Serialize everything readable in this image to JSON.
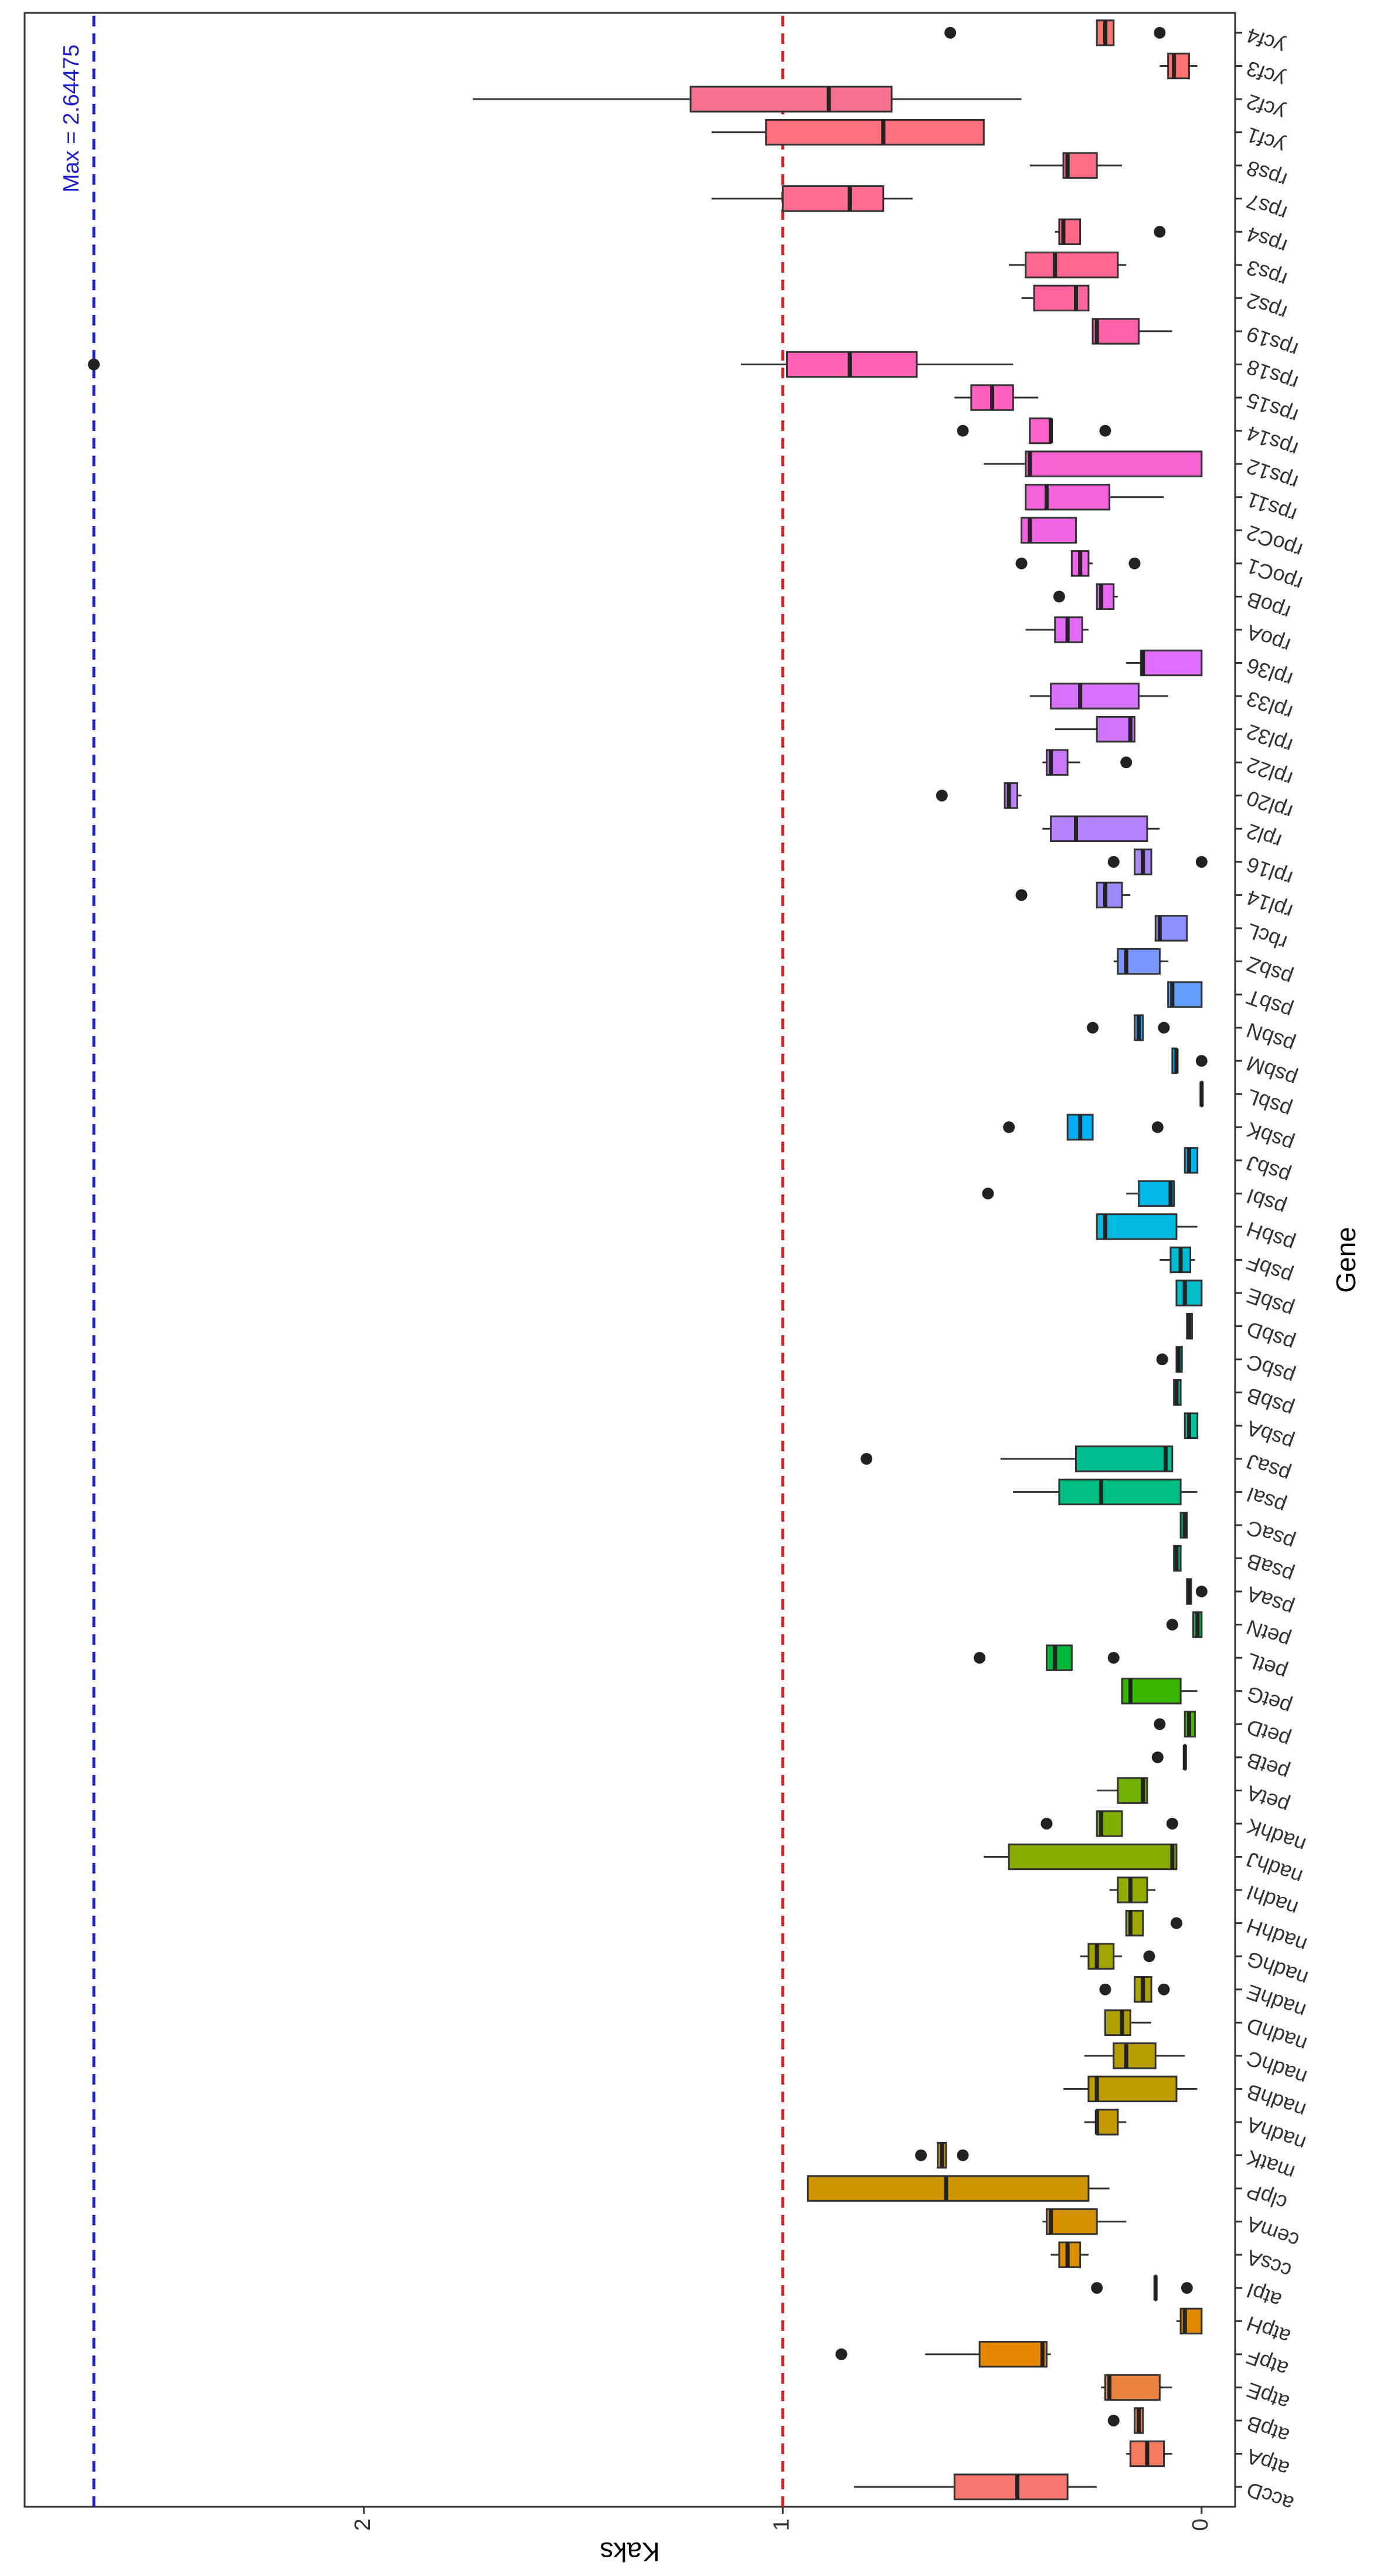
{
  "chart_data": {
    "type": "boxplot",
    "x_label": "Gene",
    "y_label": "Kaks",
    "categories": [
      "accD",
      "atpA",
      "atpB",
      "atpE",
      "atpF",
      "atpH",
      "atpI",
      "ccsA",
      "cemA",
      "clpP",
      "matK",
      "nadhA",
      "nadhB",
      "nadhC",
      "nadhD",
      "nadhE",
      "nadhG",
      "nadhH",
      "nadhI",
      "nadhJ",
      "nadhK",
      "petA",
      "petB",
      "petD",
      "petG",
      "petL",
      "petN",
      "psaA",
      "psaB",
      "psaC",
      "psaI",
      "psaJ",
      "psbA",
      "psbB",
      "psbC",
      "psbD",
      "psbE",
      "psbF",
      "psbH",
      "psbI",
      "psbJ",
      "psbK",
      "psbL",
      "psbM",
      "psbN",
      "psbT",
      "psbZ",
      "rbcL",
      "rpl14",
      "rpl16",
      "rpl2",
      "rpl20",
      "rpl22",
      "rpl32",
      "rpl33",
      "rpl36",
      "rpoA",
      "rpoB",
      "rpoC1",
      "rpoC2",
      "rps11",
      "rps12",
      "rps14",
      "rps15",
      "rps18",
      "rps19",
      "rps2",
      "rps3",
      "rps4",
      "rps7",
      "rps8",
      "ycf1",
      "ycf2",
      "ycf3",
      "ycf4"
    ],
    "boxes": [
      {
        "low": 0.25,
        "q1": 0.32,
        "median": 0.44,
        "q3": 0.59,
        "high": 0.83,
        "outliers": []
      },
      {
        "low": 0.07,
        "q1": 0.09,
        "median": 0.13,
        "q3": 0.17,
        "high": 0.18,
        "outliers": []
      },
      {
        "low": 0.14,
        "q1": 0.14,
        "median": 0.15,
        "q3": 0.16,
        "high": 0.16,
        "outliers": [
          0.21
        ]
      },
      {
        "low": 0.07,
        "q1": 0.1,
        "median": 0.22,
        "q3": 0.23,
        "high": 0.24,
        "outliers": []
      },
      {
        "low": 0.36,
        "q1": 0.37,
        "median": 0.38,
        "q3": 0.53,
        "high": 0.66,
        "outliers": [
          0.86
        ]
      },
      {
        "low": 0,
        "q1": 0,
        "median": 0.04,
        "q3": 0.05,
        "high": 0.06,
        "outliers": []
      },
      {
        "low": 0.11,
        "q1": 0.11,
        "median": 0.11,
        "q3": 0.11,
        "high": 0.11,
        "outliers": [
          0.25,
          0.035
        ]
      },
      {
        "low": 0.27,
        "q1": 0.29,
        "median": 0.32,
        "q3": 0.34,
        "high": 0.36,
        "outliers": []
      },
      {
        "low": 0.18,
        "q1": 0.25,
        "median": 0.36,
        "q3": 0.37,
        "high": 0.38,
        "outliers": []
      },
      {
        "low": 0.22,
        "q1": 0.27,
        "median": 0.61,
        "q3": 0.94,
        "high": 0.94,
        "outliers": []
      },
      {
        "low": 0.61,
        "q1": 0.61,
        "median": 0.62,
        "q3": 0.63,
        "high": 0.63,
        "outliers": [
          0.67,
          0.57
        ]
      },
      {
        "low": 0.18,
        "q1": 0.2,
        "median": 0.25,
        "q3": 0.25,
        "high": 0.28,
        "outliers": []
      },
      {
        "low": 0.01,
        "q1": 0.06,
        "median": 0.25,
        "q3": 0.27,
        "high": 0.33,
        "outliers": []
      },
      {
        "low": 0.04,
        "q1": 0.11,
        "median": 0.18,
        "q3": 0.21,
        "high": 0.28,
        "outliers": []
      },
      {
        "low": 0.12,
        "q1": 0.17,
        "median": 0.19,
        "q3": 0.23,
        "high": 0.23,
        "outliers": []
      },
      {
        "low": 0.12,
        "q1": 0.12,
        "median": 0.14,
        "q3": 0.16,
        "high": 0.16,
        "outliers": [
          0.23,
          0.09
        ]
      },
      {
        "low": 0.19,
        "q1": 0.21,
        "median": 0.25,
        "q3": 0.27,
        "high": 0.29,
        "outliers": [
          0.125
        ]
      },
      {
        "low": 0.14,
        "q1": 0.14,
        "median": 0.17,
        "q3": 0.18,
        "high": 0.18,
        "outliers": [
          0.06
        ]
      },
      {
        "low": 0.11,
        "q1": 0.13,
        "median": 0.17,
        "q3": 0.2,
        "high": 0.22,
        "outliers": []
      },
      {
        "low": 0.06,
        "q1": 0.06,
        "median": 0.07,
        "q3": 0.46,
        "high": 0.52,
        "outliers": []
      },
      {
        "low": 0.19,
        "q1": 0.19,
        "median": 0.24,
        "q3": 0.25,
        "high": 0.25,
        "outliers": [
          0.37,
          0.07
        ]
      },
      {
        "low": 0.13,
        "q1": 0.13,
        "median": 0.14,
        "q3": 0.2,
        "high": 0.25,
        "outliers": []
      },
      {
        "low": 0.04,
        "q1": 0.04,
        "median": 0.04,
        "q3": 0.04,
        "high": 0.04,
        "outliers": [
          0.105
        ]
      },
      {
        "low": 0.016,
        "q1": 0.016,
        "median": 0.03,
        "q3": 0.04,
        "high": 0.04,
        "outliers": [
          0.1
        ]
      },
      {
        "low": 0.01,
        "q1": 0.05,
        "median": 0.17,
        "q3": 0.19,
        "high": 0.19,
        "outliers": []
      },
      {
        "low": 0.31,
        "q1": 0.31,
        "median": 0.35,
        "q3": 0.37,
        "high": 0.37,
        "outliers": [
          0.53,
          0.21
        ]
      },
      {
        "low": 0,
        "q1": 0,
        "median": 0.01,
        "q3": 0.02,
        "high": 0.02,
        "outliers": [
          0.07
        ]
      },
      {
        "low": 0.025,
        "q1": 0.025,
        "median": 0.03,
        "q3": 0.035,
        "high": 0.035,
        "outliers": [
          0
        ]
      },
      {
        "low": 0.05,
        "q1": 0.05,
        "median": 0.06,
        "q3": 0.066,
        "high": 0.066,
        "outliers": []
      },
      {
        "low": 0.035,
        "q1": 0.035,
        "median": 0.04,
        "q3": 0.05,
        "high": 0.05,
        "outliers": []
      },
      {
        "low": 0.01,
        "q1": 0.05,
        "median": 0.24,
        "q3": 0.34,
        "high": 0.45,
        "outliers": []
      },
      {
        "low": 0.07,
        "q1": 0.07,
        "median": 0.086,
        "q3": 0.3,
        "high": 0.48,
        "outliers": [
          0.8
        ]
      },
      {
        "low": 0.01,
        "q1": 0.01,
        "median": 0.03,
        "q3": 0.04,
        "high": 0.04,
        "outliers": []
      },
      {
        "low": 0.05,
        "q1": 0.05,
        "median": 0.06,
        "q3": 0.066,
        "high": 0.066,
        "outliers": []
      },
      {
        "low": 0.047,
        "q1": 0.047,
        "median": 0.055,
        "q3": 0.06,
        "high": 0.06,
        "outliers": [
          0.094
        ]
      },
      {
        "low": 0.023,
        "q1": 0.023,
        "median": 0.03,
        "q3": 0.035,
        "high": 0.035,
        "outliers": []
      },
      {
        "low": 0,
        "q1": 0,
        "median": 0.04,
        "q3": 0.06,
        "high": 0.06,
        "outliers": []
      },
      {
        "low": 0.016,
        "q1": 0.027,
        "median": 0.05,
        "q3": 0.074,
        "high": 0.1,
        "outliers": []
      },
      {
        "low": 0.01,
        "q1": 0.06,
        "median": 0.23,
        "q3": 0.25,
        "high": 0.25,
        "outliers": []
      },
      {
        "low": 0.066,
        "q1": 0.066,
        "median": 0.074,
        "q3": 0.15,
        "high": 0.18,
        "outliers": [
          0.51
        ]
      },
      {
        "low": 0.01,
        "q1": 0.01,
        "median": 0.03,
        "q3": 0.04,
        "high": 0.04,
        "outliers": []
      },
      {
        "low": 0.26,
        "q1": 0.26,
        "median": 0.29,
        "q3": 0.32,
        "high": 0.32,
        "outliers": [
          0.46,
          0.105
        ]
      },
      {
        "low": 0,
        "q1": 0,
        "median": 0,
        "q3": 0,
        "high": 0,
        "outliers": []
      },
      {
        "low": 0.06,
        "q1": 0.06,
        "median": 0.06,
        "q3": 0.07,
        "high": 0.07,
        "outliers": [
          0
        ]
      },
      {
        "low": 0.14,
        "q1": 0.14,
        "median": 0.15,
        "q3": 0.16,
        "high": 0.16,
        "outliers": [
          0.26,
          0.09
        ]
      },
      {
        "low": 0,
        "q1": 0,
        "median": 0.07,
        "q3": 0.08,
        "high": 0.08,
        "outliers": []
      },
      {
        "low": 0.08,
        "q1": 0.1,
        "median": 0.18,
        "q3": 0.2,
        "high": 0.21,
        "outliers": []
      },
      {
        "low": 0.035,
        "q1": 0.035,
        "median": 0.1,
        "q3": 0.11,
        "high": 0.11,
        "outliers": []
      },
      {
        "low": 0.17,
        "q1": 0.19,
        "median": 0.23,
        "q3": 0.25,
        "high": 0.25,
        "outliers": [
          0.43
        ]
      },
      {
        "low": 0.12,
        "q1": 0.12,
        "median": 0.14,
        "q3": 0.16,
        "high": 0.16,
        "outliers": [
          0.21,
          0
        ]
      },
      {
        "low": 0.1,
        "q1": 0.13,
        "median": 0.3,
        "q3": 0.36,
        "high": 0.38,
        "outliers": []
      },
      {
        "low": 0.43,
        "q1": 0.44,
        "median": 0.46,
        "q3": 0.47,
        "high": 0.47,
        "outliers": [
          0.62
        ]
      },
      {
        "low": 0.29,
        "q1": 0.32,
        "median": 0.36,
        "q3": 0.37,
        "high": 0.38,
        "outliers": [
          0.18
        ]
      },
      {
        "low": 0.16,
        "q1": 0.16,
        "median": 0.17,
        "q3": 0.25,
        "high": 0.35,
        "outliers": []
      },
      {
        "low": 0.08,
        "q1": 0.15,
        "median": 0.29,
        "q3": 0.36,
        "high": 0.41,
        "outliers": []
      },
      {
        "low": 0,
        "q1": 0,
        "median": 0.14,
        "q3": 0.145,
        "high": 0.18,
        "outliers": []
      },
      {
        "low": 0.27,
        "q1": 0.285,
        "median": 0.32,
        "q3": 0.35,
        "high": 0.42,
        "outliers": []
      },
      {
        "low": 0.2,
        "q1": 0.21,
        "median": 0.24,
        "q3": 0.25,
        "high": 0.25,
        "outliers": [
          0.34
        ]
      },
      {
        "low": 0.26,
        "q1": 0.27,
        "median": 0.29,
        "q3": 0.31,
        "high": 0.31,
        "outliers": [
          0.43,
          0.16
        ]
      },
      {
        "low": 0.3,
        "q1": 0.3,
        "median": 0.41,
        "q3": 0.43,
        "high": 0.43,
        "outliers": []
      },
      {
        "low": 0.09,
        "q1": 0.22,
        "median": 0.37,
        "q3": 0.42,
        "high": 0.42,
        "outliers": []
      },
      {
        "low": 0,
        "q1": 0,
        "median": 0.41,
        "q3": 0.42,
        "high": 0.52,
        "outliers": []
      },
      {
        "low": 0.36,
        "q1": 0.36,
        "median": 0.36,
        "q3": 0.41,
        "high": 0.41,
        "outliers": [
          0.57,
          0.23
        ]
      },
      {
        "low": 0.39,
        "q1": 0.45,
        "median": 0.5,
        "q3": 0.55,
        "high": 0.59,
        "outliers": []
      },
      {
        "low": 0.45,
        "q1": 0.68,
        "median": 0.84,
        "q3": 0.99,
        "high": 1.1,
        "outliers": [
          2.64475
        ]
      },
      {
        "low": 0.07,
        "q1": 0.15,
        "median": 0.25,
        "q3": 0.26,
        "high": 0.26,
        "outliers": []
      },
      {
        "low": 0.27,
        "q1": 0.27,
        "median": 0.3,
        "q3": 0.4,
        "high": 0.43,
        "outliers": []
      },
      {
        "low": 0.18,
        "q1": 0.2,
        "median": 0.35,
        "q3": 0.42,
        "high": 0.46,
        "outliers": []
      },
      {
        "low": 0.29,
        "q1": 0.29,
        "median": 0.33,
        "q3": 0.34,
        "high": 0.35,
        "outliers": [
          0.1
        ]
      },
      {
        "low": 0.69,
        "q1": 0.76,
        "median": 0.84,
        "q3": 1.0,
        "high": 1.17,
        "outliers": []
      },
      {
        "low": 0.19,
        "q1": 0.25,
        "median": 0.32,
        "q3": 0.33,
        "high": 0.41,
        "outliers": []
      },
      {
        "low": 0.52,
        "q1": 0.52,
        "median": 0.76,
        "q3": 1.04,
        "high": 1.17,
        "outliers": []
      },
      {
        "low": 0.43,
        "q1": 0.74,
        "median": 0.89,
        "q3": 1.22,
        "high": 1.74,
        "outliers": []
      },
      {
        "low": 0.01,
        "q1": 0.03,
        "median": 0.066,
        "q3": 0.08,
        "high": 0.1,
        "outliers": []
      },
      {
        "low": 0.21,
        "q1": 0.21,
        "median": 0.23,
        "q3": 0.25,
        "high": 0.25,
        "outliers": [
          0.6,
          0.1
        ]
      }
    ],
    "colors": [
      "#F8766D",
      "#F47A5F",
      "#EF7F4F",
      "#EA833E",
      "#E58700",
      "#E18A00",
      "#DE8C00",
      "#D98F00",
      "#D49200",
      "#CE9500",
      "#C99800",
      "#C39A00",
      "#BD9D00",
      "#B79F00",
      "#B0A100",
      "#A9A400",
      "#A3A500",
      "#9CA700",
      "#93AA00",
      "#89AC00",
      "#7FAE00",
      "#72B000",
      "#64B200",
      "#53B400",
      "#39B600",
      "#00B938",
      "#00BA4A",
      "#00BC5A",
      "#00BD69",
      "#00BE77",
      "#00BF84",
      "#00C091",
      "#00C09D",
      "#00C0A9",
      "#00C0B5",
      "#00BFC0",
      "#00BECB",
      "#00BCD6",
      "#00BAE0",
      "#00B7E9",
      "#00B4F0",
      "#00B0F6",
      "#00ACFC",
      "#00A7FF",
      "#30A1FF",
      "#619CFF",
      "#7A96FF",
      "#8C90FF",
      "#9B8BFF",
      "#A986FF",
      "#B581FF",
      "#BF7DFF",
      "#C879FF",
      "#D075FF",
      "#D772FE",
      "#DE6EFB",
      "#E36BF7",
      "#E869F2",
      "#ED67EB",
      "#F165E4",
      "#F563DC",
      "#F862D3",
      "#FB61C9",
      "#FD61BF",
      "#FF61B4",
      "#FF62A9",
      "#FF649E",
      "#FF6692",
      "#FF6886",
      "#FE6B8C",
      "#FD6D84",
      "#FC6F7D",
      "#F8708F",
      "#FA7372",
      "#F9756E"
    ],
    "ylim": [
      -0.08,
      2.81
    ],
    "yticks": [
      0,
      1,
      2
    ],
    "ref_line": {
      "value": 1,
      "color": "#e41a1c"
    },
    "max_line": {
      "value": 2.64475,
      "label": "Max = 2.64475",
      "color": "#1f1fd0"
    }
  }
}
